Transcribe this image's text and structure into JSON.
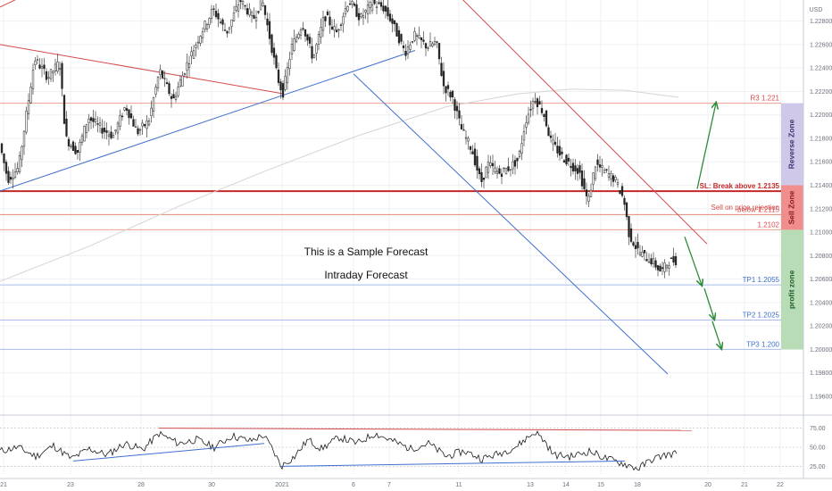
{
  "chart_data": {
    "type": "candlestick",
    "title": "",
    "currency_label": "USD",
    "y_axis": {
      "ylim": [
        1.1947,
        1.2298
      ],
      "ticks": [
        "1.22800",
        "1.22600",
        "1.22400",
        "1.22200",
        "1.22000",
        "1.21800",
        "1.21600",
        "1.21400",
        "1.21200",
        "1.21000",
        "1.20800",
        "1.20600",
        "1.20400",
        "1.20200",
        "1.20000",
        "1.19800",
        "1.19600"
      ]
    },
    "x_axis": {
      "dates": [
        "Dec 21",
        "Dec 23",
        "Dec 28",
        "Dec 30",
        "Jan 4",
        "Jan 6",
        "Jan 7",
        "Jan 11",
        "Jan 13",
        "Jan 14",
        "Jan 15",
        "Jan 18",
        "Jan 20",
        "Jan 21",
        "Jan 22"
      ],
      "tick_labels": [
        "21",
        "23",
        "28",
        "30",
        "2021",
        "6",
        "7",
        "11",
        "13",
        "14",
        "15",
        "18",
        "20",
        "21",
        "22"
      ],
      "grid": true
    },
    "price_path": [
      [
        0,
        1.2178
      ],
      [
        10,
        1.2145
      ],
      [
        22,
        1.2155
      ],
      [
        40,
        1.2248
      ],
      [
        55,
        1.2232
      ],
      [
        68,
        1.2245
      ],
      [
        75,
        1.218
      ],
      [
        88,
        1.2168
      ],
      [
        100,
        1.2198
      ],
      [
        115,
        1.2188
      ],
      [
        128,
        1.2182
      ],
      [
        142,
        1.2208
      ],
      [
        155,
        1.2185
      ],
      [
        168,
        1.2195
      ],
      [
        180,
        1.2238
      ],
      [
        195,
        1.2212
      ],
      [
        210,
        1.2242
      ],
      [
        225,
        1.2268
      ],
      [
        240,
        1.229
      ],
      [
        255,
        1.227
      ],
      [
        270,
        1.2298
      ],
      [
        285,
        1.2282
      ],
      [
        295,
        1.2298
      ],
      [
        305,
        1.226
      ],
      [
        312,
        1.2232
      ],
      [
        318,
        1.2218
      ],
      [
        328,
        1.2258
      ],
      [
        340,
        1.2278
      ],
      [
        352,
        1.2248
      ],
      [
        365,
        1.2285
      ],
      [
        378,
        1.227
      ],
      [
        392,
        1.2298
      ],
      [
        405,
        1.2282
      ],
      [
        418,
        1.2295
      ],
      [
        430,
        1.2292
      ],
      [
        440,
        1.228
      ],
      [
        455,
        1.2253
      ],
      [
        465,
        1.2268
      ],
      [
        480,
        1.2258
      ],
      [
        490,
        1.2262
      ],
      [
        498,
        1.2225
      ],
      [
        508,
        1.2215
      ],
      [
        518,
        1.2188
      ],
      [
        530,
        1.217
      ],
      [
        540,
        1.2142
      ],
      [
        548,
        1.2158
      ],
      [
        560,
        1.215
      ],
      [
        572,
        1.2155
      ],
      [
        582,
        1.2162
      ],
      [
        590,
        1.2195
      ],
      [
        600,
        1.2215
      ],
      [
        610,
        1.2202
      ],
      [
        618,
        1.2178
      ],
      [
        630,
        1.2165
      ],
      [
        640,
        1.2158
      ],
      [
        650,
        1.2152
      ],
      [
        660,
        1.2125
      ],
      [
        668,
        1.2158
      ],
      [
        678,
        1.2152
      ],
      [
        690,
        1.2145
      ],
      [
        700,
        1.2128
      ],
      [
        706,
        1.2098
      ],
      [
        715,
        1.2085
      ],
      [
        722,
        1.208
      ],
      [
        732,
        1.2075
      ],
      [
        742,
        1.2066
      ],
      [
        750,
        1.2075
      ],
      [
        758,
        1.2076
      ]
    ],
    "moving_average": [
      [
        0,
        1.2058
      ],
      [
        100,
        1.2088
      ],
      [
        200,
        1.2122
      ],
      [
        300,
        1.2153
      ],
      [
        400,
        1.2182
      ],
      [
        500,
        1.2207
      ],
      [
        580,
        1.2218
      ],
      [
        640,
        1.2222
      ],
      [
        700,
        1.2221
      ],
      [
        760,
        1.2215
      ]
    ],
    "trendlines": [
      {
        "color": "#d44a4a",
        "points": [
          [
            0,
            1.226
          ],
          [
            318,
            1.2218
          ]
        ]
      },
      {
        "color": "#d44a4a",
        "points": [
          [
            0,
            1.2292
          ],
          [
            50,
            1.231
          ]
        ]
      },
      {
        "color": "#3f6fce",
        "points": [
          [
            0,
            1.2135
          ],
          [
            465,
            1.2255
          ]
        ]
      },
      {
        "color": "#3f6fce",
        "points": [
          [
            396,
            1.2235
          ],
          [
            748,
            1.1979
          ]
        ]
      },
      {
        "color": "#d44a4a",
        "points": [
          [
            503,
            1.231
          ],
          [
            792,
            1.209
          ]
        ]
      }
    ],
    "levels": [
      {
        "label": "R3 1.221",
        "value": 1.221,
        "color": "#e8a08f",
        "label_color": "#d44a4a"
      },
      {
        "label": "SL: Break above 1.2135",
        "value": 1.2135,
        "color": "#c62828",
        "label_color": "#c62828",
        "bold": true
      },
      {
        "label": "Sell on price rejection",
        "value": 1.2125,
        "color": "#e8a08f",
        "label_color": "#d44a4a",
        "show_line": false
      },
      {
        "label": "below  1.2115",
        "value": 1.2115,
        "color": "#e08a7a",
        "label_color": "#d44a4a"
      },
      {
        "label": "1.2102",
        "value": 1.2102,
        "color": "#e8a08f",
        "label_color": "#d44a4a"
      },
      {
        "label": "TP1 1.2055",
        "value": 1.2055,
        "color": "#a9bde6",
        "label_color": "#3f6fce"
      },
      {
        "label": "TP2 1.2025",
        "value": 1.2025,
        "color": "#a9bde6",
        "label_color": "#3f6fce"
      },
      {
        "label": "TP3 1.200",
        "value": 1.2,
        "color": "#a9bde6",
        "label_color": "#3f6fce"
      }
    ],
    "zones": [
      {
        "label": "Reverse Zone",
        "from": 1.214,
        "to": 1.221,
        "fill": "#cfc8e8",
        "text_color": "#3d3470"
      },
      {
        "label": "Sell Zone",
        "from": 1.2102,
        "to": 1.214,
        "fill": "#f08d8d",
        "text_color": "#8b1a1a"
      },
      {
        "label": "profit zone",
        "from": 1.2,
        "to": 1.2102,
        "fill": "#b7dcb6",
        "text_color": "#1f5d2c"
      }
    ],
    "forecast_arrows": [
      {
        "from": [
          781,
          1.2137
        ],
        "to": [
          802,
          1.221
        ]
      },
      {
        "from": [
          767,
          1.2096
        ],
        "to": [
          786,
          1.2055
        ]
      },
      {
        "from": [
          789,
          1.2052
        ],
        "to": [
          800,
          1.2026
        ]
      },
      {
        "from": [
          798,
          1.2024
        ],
        "to": [
          808,
          1.2001
        ]
      }
    ],
    "annotations": [
      "This is a Sample Forecast",
      "Intraday Forecast"
    ],
    "oscillator": {
      "ylim": [
        15,
        85
      ],
      "ticks": [
        "75.00",
        "50.00",
        "25.00"
      ],
      "reference_lines": [
        75,
        50,
        25
      ],
      "values": [
        [
          0,
          45
        ],
        [
          20,
          50
        ],
        [
          40,
          38
        ],
        [
          60,
          52
        ],
        [
          80,
          35
        ],
        [
          100,
          48
        ],
        [
          120,
          40
        ],
        [
          140,
          55
        ],
        [
          160,
          47
        ],
        [
          178,
          68
        ],
        [
          200,
          55
        ],
        [
          220,
          60
        ],
        [
          240,
          50
        ],
        [
          260,
          65
        ],
        [
          280,
          58
        ],
        [
          295,
          66
        ],
        [
          305,
          48
        ],
        [
          315,
          25
        ],
        [
          330,
          38
        ],
        [
          345,
          60
        ],
        [
          360,
          48
        ],
        [
          380,
          63
        ],
        [
          400,
          55
        ],
        [
          420,
          68
        ],
        [
          440,
          58
        ],
        [
          460,
          48
        ],
        [
          480,
          55
        ],
        [
          500,
          38
        ],
        [
          520,
          45
        ],
        [
          540,
          35
        ],
        [
          560,
          42
        ],
        [
          580,
          52
        ],
        [
          590,
          62
        ],
        [
          600,
          70
        ],
        [
          610,
          58
        ],
        [
          620,
          40
        ],
        [
          640,
          38
        ],
        [
          660,
          45
        ],
        [
          680,
          35
        ],
        [
          700,
          28
        ],
        [
          715,
          22
        ],
        [
          730,
          34
        ],
        [
          745,
          40
        ],
        [
          758,
          42
        ]
      ],
      "trendlines": [
        {
          "color": "#d44a4a",
          "points": [
            [
              178,
              75
            ],
            [
              775,
              72
            ]
          ]
        },
        {
          "color": "#3f6fce",
          "points": [
            [
              82,
              32
            ],
            [
              296,
              55
            ]
          ]
        },
        {
          "color": "#3f6fce",
          "points": [
            [
              315,
              25
            ],
            [
              700,
              32
            ]
          ]
        }
      ]
    }
  }
}
